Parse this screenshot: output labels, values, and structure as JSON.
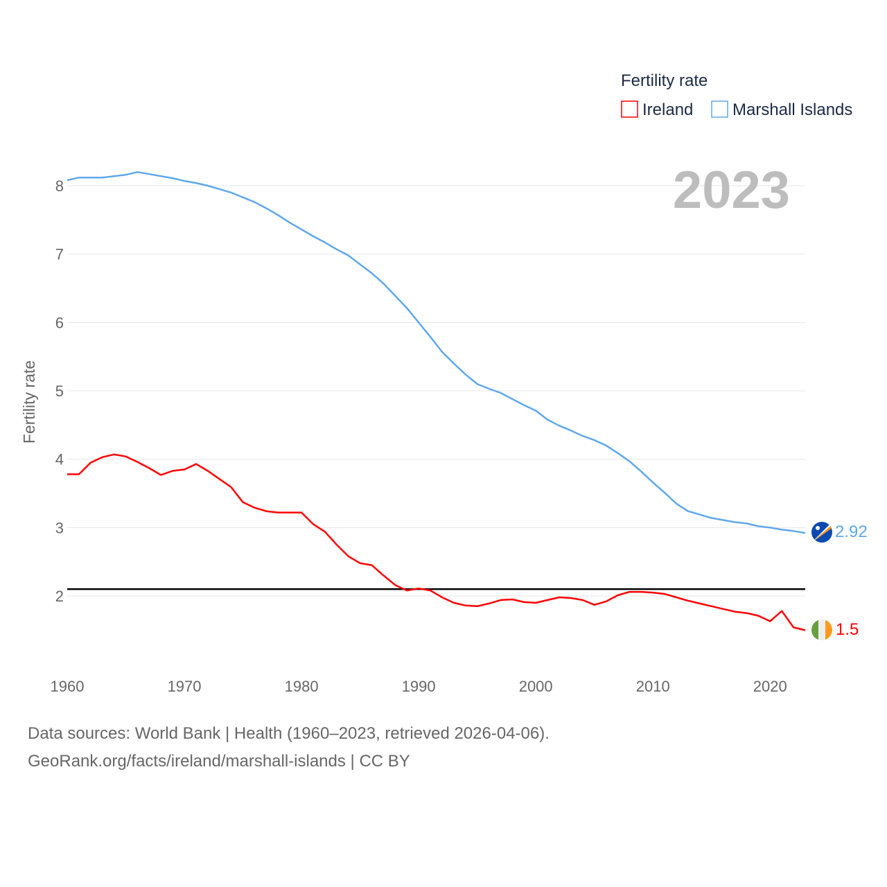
{
  "chart_data": {
    "type": "line",
    "title": "",
    "ylabel": "Fertility rate",
    "xlabel": "",
    "year_badge": "2023",
    "xlim": [
      1960,
      2023
    ],
    "ylim": [
      1.0,
      8.4
    ],
    "x_ticks": [
      1960,
      1970,
      1980,
      1990,
      2000,
      2010,
      2020
    ],
    "y_ticks": [
      2,
      3,
      4,
      5,
      6,
      7,
      8
    ],
    "grid": true,
    "legend": {
      "title": "Fertility rate",
      "placement": "top-right"
    },
    "reference_line": {
      "value": 2.1,
      "color": "#000000"
    },
    "x": [
      1960,
      1961,
      1962,
      1963,
      1964,
      1965,
      1966,
      1967,
      1968,
      1969,
      1970,
      1971,
      1972,
      1973,
      1974,
      1975,
      1976,
      1977,
      1978,
      1979,
      1980,
      1981,
      1982,
      1983,
      1984,
      1985,
      1986,
      1987,
      1988,
      1989,
      1990,
      1991,
      1992,
      1993,
      1994,
      1995,
      1996,
      1997,
      1998,
      1999,
      2000,
      2001,
      2002,
      2003,
      2004,
      2005,
      2006,
      2007,
      2008,
      2009,
      2010,
      2011,
      2012,
      2013,
      2014,
      2015,
      2016,
      2017,
      2018,
      2019,
      2020,
      2021,
      2022,
      2023
    ],
    "series": [
      {
        "name": "Ireland",
        "color": "#ff0000",
        "end_label": "1.5",
        "flag": "ireland-flag",
        "values": [
          3.78,
          3.78,
          3.95,
          4.03,
          4.07,
          4.04,
          3.96,
          3.87,
          3.77,
          3.83,
          3.85,
          3.93,
          3.83,
          3.71,
          3.59,
          3.37,
          3.29,
          3.24,
          3.22,
          3.22,
          3.22,
          3.05,
          2.94,
          2.75,
          2.58,
          2.48,
          2.45,
          2.3,
          2.16,
          2.08,
          2.11,
          2.08,
          1.98,
          1.9,
          1.86,
          1.85,
          1.89,
          1.94,
          1.95,
          1.91,
          1.9,
          1.94,
          1.98,
          1.97,
          1.94,
          1.87,
          1.92,
          2.01,
          2.06,
          2.06,
          2.05,
          2.03,
          1.98,
          1.93,
          1.89,
          1.85,
          1.81,
          1.77,
          1.75,
          1.71,
          1.63,
          1.78,
          1.54,
          1.5
        ]
      },
      {
        "name": "Marshall Islands",
        "color": "#5ea8ee",
        "end_label": "2.92",
        "flag": "marshall-islands-flag",
        "values": [
          8.08,
          8.12,
          8.12,
          8.12,
          8.14,
          8.16,
          8.2,
          8.17,
          8.14,
          8.11,
          8.07,
          8.04,
          8.0,
          7.95,
          7.9,
          7.83,
          7.76,
          7.67,
          7.57,
          7.46,
          7.36,
          7.26,
          7.17,
          7.07,
          6.98,
          6.85,
          6.72,
          6.57,
          6.39,
          6.21,
          6.0,
          5.79,
          5.57,
          5.4,
          5.24,
          5.1,
          5.03,
          4.97,
          4.88,
          4.79,
          4.71,
          4.58,
          4.49,
          4.42,
          4.34,
          4.28,
          4.2,
          4.09,
          3.97,
          3.82,
          3.66,
          3.51,
          3.35,
          3.24,
          3.19,
          3.14,
          3.11,
          3.08,
          3.06,
          3.02,
          3.0,
          2.97,
          2.95,
          2.92
        ]
      }
    ]
  },
  "footer": {
    "sources": "Data sources: World Bank | Health (1960–2023, retrieved 2026-04-06).",
    "credit": "GeoRank.org/facts/ireland/marshall-islands | CC BY"
  }
}
